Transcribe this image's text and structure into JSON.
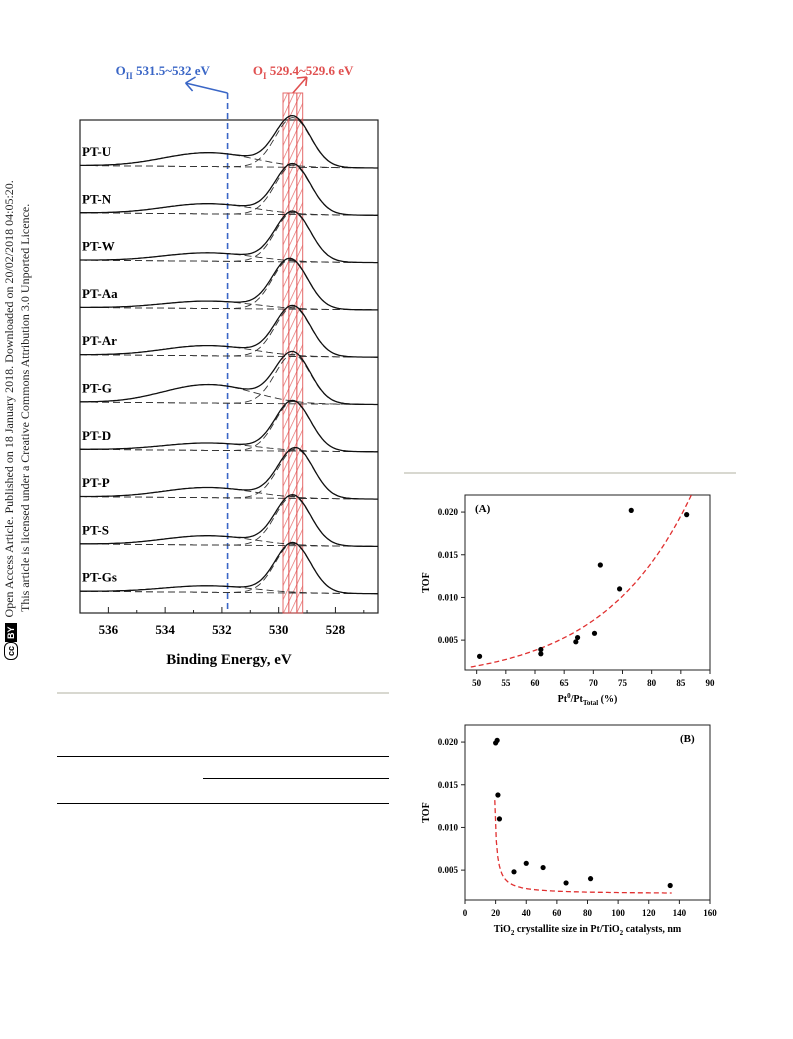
{
  "notice": {
    "line1": "Open Access Article. Published on 18 January 2018. Downloaded on 20/02/2018 04:05:20.",
    "line2": "This article is licensed under a Creative Commons Attribution 3.0 Unported Licence.",
    "badge_cc": "cc",
    "badge_by": "BY"
  },
  "chart_data": [
    {
      "type": "line",
      "xlabel": "Binding Energy, eV",
      "xlim": [
        537,
        526.5
      ],
      "xticks": [
        536,
        534,
        532,
        530,
        528
      ],
      "series": [
        {
          "name": "PT-U",
          "main_peak_eV": 529.5,
          "oii_intensity": 0.3
        },
        {
          "name": "PT-N",
          "main_peak_eV": 529.5,
          "oii_intensity": 0.22
        },
        {
          "name": "PT-W",
          "main_peak_eV": 529.5,
          "oii_intensity": 0.18
        },
        {
          "name": "PT-Aa",
          "main_peak_eV": 529.6,
          "oii_intensity": 0.16
        },
        {
          "name": "PT-Ar",
          "main_peak_eV": 529.5,
          "oii_intensity": 0.22
        },
        {
          "name": "PT-G",
          "main_peak_eV": 529.5,
          "oii_intensity": 0.4
        },
        {
          "name": "PT-D",
          "main_peak_eV": 529.5,
          "oii_intensity": 0.16
        },
        {
          "name": "PT-P",
          "main_peak_eV": 529.4,
          "oii_intensity": 0.22
        },
        {
          "name": "PT-S",
          "main_peak_eV": 529.5,
          "oii_intensity": 0.2
        },
        {
          "name": "PT-Gs",
          "main_peak_eV": 529.5,
          "oii_intensity": 0.14
        }
      ],
      "annotations": [
        {
          "label_main": "O",
          "label_sub": "II",
          "label_rest": " 531.5~532 eV",
          "x": 531.8,
          "color": "#3a66c6"
        },
        {
          "label_main": "O",
          "label_sub": "I",
          "label_rest": " 529.4~529.6 eV",
          "x_range": [
            529.4,
            529.6
          ],
          "color": "#e05050"
        }
      ]
    },
    {
      "type": "scatter",
      "panel_label": "(A)",
      "xlabel_main": "Pt",
      "xlabel_sup": "0",
      "xlabel_mid": "/Pt",
      "xlabel_sub": "Total",
      "xlabel_rest": " (%)",
      "ylabel": "TOF",
      "xlim": [
        48,
        90
      ],
      "ylim": [
        0.0015,
        0.022
      ],
      "xticks": [
        50,
        55,
        60,
        65,
        70,
        75,
        80,
        85,
        90
      ],
      "yticks": [
        0.005,
        0.01,
        0.015,
        0.02
      ],
      "ytick_labels": [
        "0.005",
        "0.010",
        "0.015",
        "0.020"
      ],
      "points": [
        {
          "x": 50.5,
          "y": 0.0031
        },
        {
          "x": 61.0,
          "y": 0.0039
        },
        {
          "x": 61.0,
          "y": 0.0034
        },
        {
          "x": 67.0,
          "y": 0.0048
        },
        {
          "x": 67.3,
          "y": 0.0053
        },
        {
          "x": 70.2,
          "y": 0.0058
        },
        {
          "x": 71.2,
          "y": 0.0138
        },
        {
          "x": 74.5,
          "y": 0.011
        },
        {
          "x": 76.5,
          "y": 0.0202
        },
        {
          "x": 86.0,
          "y": 0.0197
        }
      ],
      "fit": {
        "style": "dashed",
        "color": "#e03030",
        "model": "exponential"
      }
    },
    {
      "type": "scatter",
      "panel_label": "(B)",
      "xlabel_main": "TiO",
      "xlabel_sub": "2",
      "xlabel_mid": " crystallite size in Pt/TiO",
      "xlabel_sub2": "2",
      "xlabel_rest": " catalysts, nm",
      "ylabel": "TOF",
      "xlim": [
        0,
        160
      ],
      "ylim": [
        0.0015,
        0.022
      ],
      "xticks": [
        0,
        20,
        40,
        60,
        80,
        100,
        120,
        140,
        160
      ],
      "yticks": [
        0.005,
        0.01,
        0.015,
        0.02
      ],
      "ytick_labels": [
        "0.005",
        "0.010",
        "0.015",
        "0.020"
      ],
      "points": [
        {
          "x": 20.0,
          "y": 0.0199
        },
        {
          "x": 21.0,
          "y": 0.0202
        },
        {
          "x": 21.5,
          "y": 0.0138
        },
        {
          "x": 22.5,
          "y": 0.011
        },
        {
          "x": 32.0,
          "y": 0.0048
        },
        {
          "x": 40.0,
          "y": 0.0058
        },
        {
          "x": 51.0,
          "y": 0.0053
        },
        {
          "x": 66.0,
          "y": 0.0035
        },
        {
          "x": 82.0,
          "y": 0.004
        },
        {
          "x": 134.0,
          "y": 0.0032
        }
      ],
      "fit": {
        "style": "dashed",
        "color": "#e03030",
        "model": "hyperbolic"
      }
    }
  ]
}
